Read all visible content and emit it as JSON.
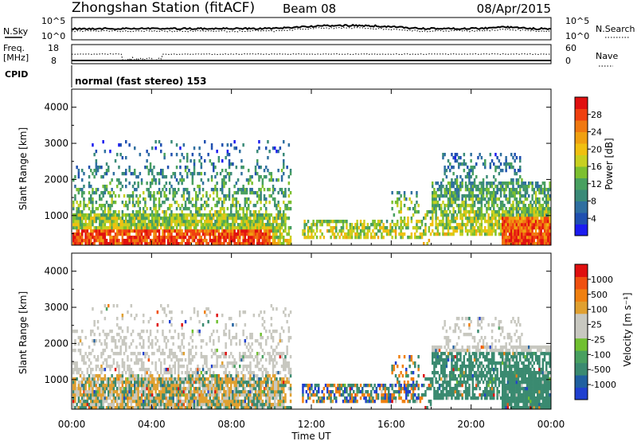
{
  "header": {
    "station": "Zhongshan Station (fitACF)",
    "beam": "Beam 08",
    "date": "08/Apr/2015"
  },
  "top_panels": {
    "nsky_label": "N.Sky",
    "nsky_ticks": [
      "10^5",
      "10^0"
    ],
    "nsearch_label": "N.Search",
    "nsearch_ticks": [
      "10^5",
      "10^0"
    ],
    "freq_label": "Freq.",
    "freq_unit": "[MHz]",
    "freq_ticks": [
      "18",
      "8"
    ],
    "nave_label": "Nave",
    "nave_ticks": [
      "60",
      "0"
    ],
    "cpid_label": "CPID",
    "cpid_text": "normal (fast stereo) 153"
  },
  "chart_data": [
    {
      "type": "heatmap",
      "name": "power",
      "ylabel": "Slant Range [km]",
      "ylim": [
        180,
        4500
      ],
      "yticks": [
        "4000",
        "3000",
        "2000",
        "1000"
      ],
      "xlabel": "Time UT",
      "xticks": [
        "00:00",
        "04:00",
        "08:00",
        "12:00",
        "16:00",
        "20:00",
        "00:00"
      ],
      "xlim_hours": [
        0,
        24
      ],
      "colorbar": {
        "label": "Power [dB]",
        "ticks": [
          "28",
          "24",
          "20",
          "16",
          "12",
          "8",
          "4"
        ],
        "range": [
          0,
          32
        ],
        "colors": [
          "#1c1cf0",
          "#2050b0",
          "#2f6fa0",
          "#3a8a78",
          "#48a060",
          "#7cc030",
          "#c8d020",
          "#f0c010",
          "#f0a010",
          "#f07810",
          "#f04010",
          "#e01010"
        ]
      },
      "echo_regions_km": {
        "ground_scatter_strong": [
          [
            0,
            10.5,
            200,
            1100
          ],
          [
            21.5,
            24,
            200,
            1300
          ]
        ],
        "mid_band": [
          [
            0,
            11,
            1000,
            2400
          ],
          [
            12,
            17.5,
            400,
            900
          ],
          [
            18,
            24,
            600,
            2000
          ]
        ],
        "high_band": [
          [
            0,
            11,
            1600,
            3100
          ],
          [
            18.5,
            22.5,
            1800,
            2800
          ]
        ]
      }
    },
    {
      "type": "heatmap",
      "name": "velocity",
      "ylabel": "Slant Range [km]",
      "ylim": [
        180,
        4500
      ],
      "yticks": [
        "4000",
        "3000",
        "2000",
        "1000"
      ],
      "colorbar": {
        "label": "Velocity [m s⁻¹]",
        "ticks": [
          "1000",
          "500",
          "100",
          "25",
          "-25",
          "-100",
          "-500",
          "-1000"
        ],
        "colors": [
          "#2040d0",
          "#2060a0",
          "#3a8a70",
          "#48a060",
          "#70c030",
          "#c8c8c0",
          "#c8c8c0",
          "#e0a030",
          "#f08010",
          "#f05010",
          "#e01010"
        ]
      }
    }
  ]
}
